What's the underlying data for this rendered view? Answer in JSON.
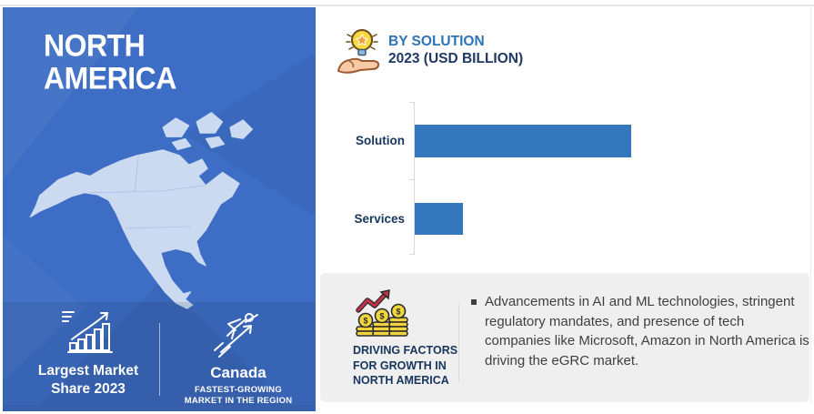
{
  "left_panel": {
    "title_lines": [
      "NORTH",
      "AMERICA"
    ],
    "footer": {
      "market_share": {
        "lines": [
          "Largest Market",
          "Share 2023"
        ]
      },
      "fastest_growing": {
        "country": "Canada",
        "subtitle_lines": [
          "FASTEST-GROWING",
          "MARKET IN THE REGION"
        ]
      }
    }
  },
  "by_solution": {
    "heading": "BY SOLUTION",
    "subheading": "2023 (USD BILLION)"
  },
  "chart_data": {
    "type": "bar",
    "orientation": "horizontal",
    "title": "BY SOLUTION",
    "subtitle": "2023 (USD BILLION)",
    "categories": [
      "Solution",
      "Services"
    ],
    "values": [
      4.5,
      1.0
    ],
    "xlim": [
      0,
      5
    ],
    "grid": false,
    "value_labels_shown": false,
    "legend": "none",
    "bar_color": "#3477bd"
  },
  "driving_factors": {
    "label_lines": [
      "DRIVING FACTORS",
      "FOR GROWTH IN",
      "NORTH AMERICA"
    ],
    "bullet_text": "Advancements in AI and ML technologies, stringent regulatory mandates, and presence of tech companies like Microsoft, Amazon in North America is driving the eGRC market."
  },
  "colors": {
    "panel_blue": "#3d6dc5",
    "panel_bottom_strip": "#3760ac",
    "map_fill": "#cbdaf1",
    "bar_blue": "#3477bd",
    "heading_blue": "#2e75b6",
    "navy": "#1f3864",
    "gray_panel": "#efefef",
    "body_text": "#3f3f3f"
  }
}
